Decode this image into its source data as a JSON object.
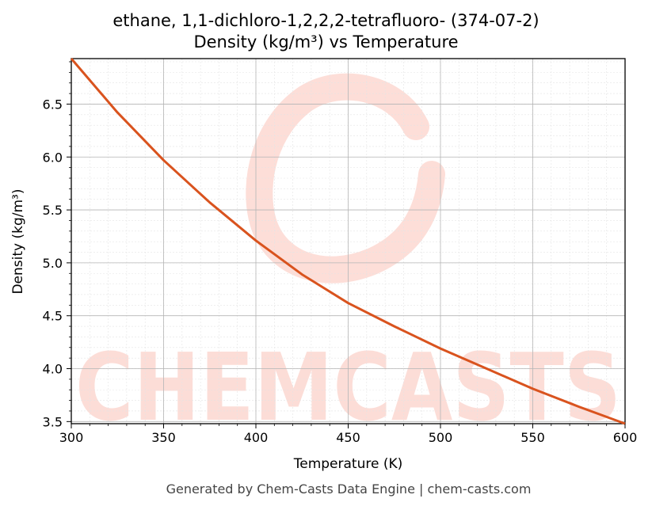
{
  "chart_data": {
    "type": "line",
    "title": "ethane, 1,1-dichloro-1,2,2,2-tetrafluoro- (374-07-2)",
    "subtitle": "Density (kg/m³) vs Temperature",
    "xlabel": "Temperature (K)",
    "ylabel": "Density (kg/m³)",
    "xlim": [
      300,
      600
    ],
    "ylim": [
      3.48,
      6.93
    ],
    "xticks": [
      300,
      350,
      400,
      450,
      500,
      550,
      600
    ],
    "yticks": [
      3.5,
      4.0,
      4.5,
      5.0,
      5.5,
      6.0,
      6.5
    ],
    "xtick_labels": [
      "300",
      "350",
      "400",
      "450",
      "500",
      "550",
      "600"
    ],
    "ytick_labels": [
      "3.5",
      "4.0",
      "4.5",
      "5.0",
      "5.5",
      "6.0",
      "6.5"
    ],
    "grid": true,
    "series": [
      {
        "color": "#d9531e",
        "x": [
          300,
          325,
          350,
          375,
          400,
          425,
          450,
          475,
          500,
          525,
          550,
          575,
          600
        ],
        "y": [
          6.93,
          6.42,
          5.97,
          5.57,
          5.21,
          4.89,
          4.62,
          4.4,
          4.19,
          4.0,
          3.81,
          3.64,
          3.48
        ]
      }
    ]
  },
  "watermark": "CHEMCASTS",
  "footer": "Generated by Chem-Casts Data Engine | chem-casts.com"
}
